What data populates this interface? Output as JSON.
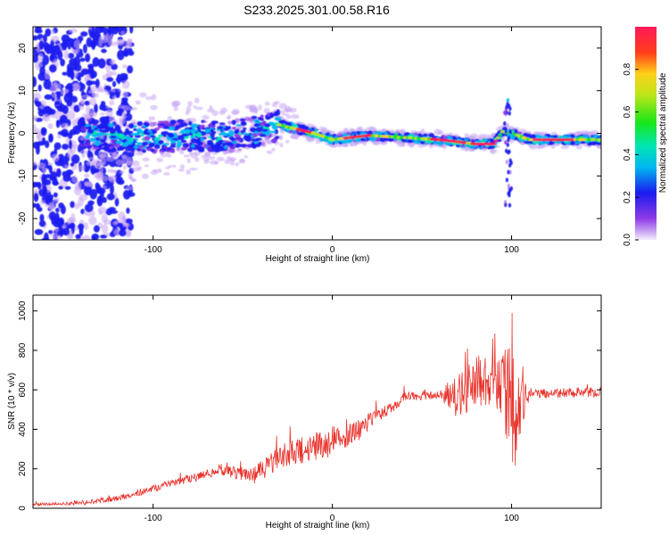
{
  "title": "S233.2025.301.00.58.R16",
  "chart_data": [
    {
      "type": "heatmap",
      "title": "S233.2025.301.00.58.R16",
      "xlabel": "Height of straight line (km)",
      "ylabel": "Frequency (Hz)",
      "xlim": [
        -167,
        150
      ],
      "ylim": [
        -25,
        25
      ],
      "xticks": [
        -100,
        0,
        100
      ],
      "yticks": [
        -20,
        -10,
        0,
        10,
        20
      ],
      "colorbar": {
        "label": "Normalized spectral amplitude",
        "range": [
          0,
          1
        ],
        "ticks": [
          "0.0",
          "0.2",
          "0.4",
          "0.6",
          "0.8"
        ]
      },
      "ridge_frequency": {
        "x": [
          -160,
          -140,
          -120,
          -100,
          -80,
          -60,
          -40,
          -30,
          -20,
          -10,
          0,
          10,
          20,
          40,
          60,
          80,
          90,
          95,
          100,
          110,
          130,
          150
        ],
        "y": [
          0,
          0,
          -1,
          -1,
          -0.5,
          -1,
          0.5,
          2,
          1,
          0,
          -1.5,
          -1,
          -0.5,
          -1,
          -1.5,
          -2.5,
          -2.5,
          0.5,
          0,
          -1.5,
          -1.5,
          -1.5
        ]
      },
      "spike": {
        "x": 98,
        "y_range": [
          -17,
          9
        ]
      }
    },
    {
      "type": "line",
      "xlabel": "Height of straight line (km)",
      "ylabel": "SNR (10 * v/v)",
      "xlim": [
        -167,
        150
      ],
      "ylim": [
        0,
        1080
      ],
      "xticks": [
        -100,
        0,
        100
      ],
      "yticks": [
        0,
        200,
        400,
        600,
        800,
        1000
      ],
      "color": "#e8322b",
      "envelope": {
        "x": [
          -167,
          -140,
          -120,
          -100,
          -80,
          -60,
          -45,
          -35,
          -25,
          -15,
          -5,
          5,
          15,
          25,
          35,
          40,
          50,
          60,
          70,
          74,
          80,
          90,
          95,
          100,
          103,
          105,
          108,
          115,
          130,
          150
        ],
        "y": [
          20,
          25,
          50,
          100,
          150,
          190,
          160,
          220,
          280,
          300,
          320,
          360,
          400,
          470,
          520,
          560,
          570,
          575,
          575,
          600,
          640,
          650,
          620,
          660,
          350,
          600,
          580,
          580,
          585,
          590
        ]
      },
      "noise_amplitude": {
        "x": [
          -167,
          -60,
          -30,
          0,
          30,
          60,
          70,
          95,
          100,
          105,
          110,
          150
        ],
        "y": [
          6,
          25,
          60,
          80,
          30,
          20,
          120,
          150,
          500,
          200,
          25,
          25
        ]
      }
    }
  ]
}
